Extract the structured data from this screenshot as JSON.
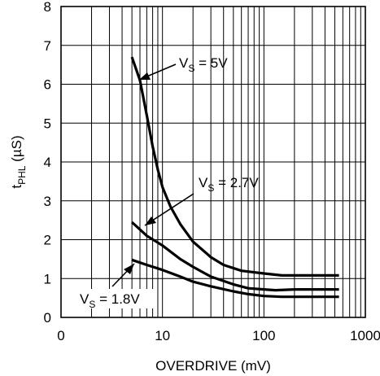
{
  "chart_data": {
    "type": "line",
    "title": "",
    "xlabel": "OVERDRIVE (mV)",
    "ylabel": "tPHL (µS)",
    "ylabel_main": "t",
    "ylabel_sub": "PHL",
    "ylabel_units": " (µS)",
    "x_scale": "log",
    "xlim": [
      1,
      1000
    ],
    "ylim": [
      0,
      8
    ],
    "grid": true,
    "x_tick_labels": [
      "0",
      "10",
      "100",
      "1000"
    ],
    "y_tick_labels": [
      "0",
      "1",
      "2",
      "3",
      "4",
      "5",
      "6",
      "7",
      "8"
    ],
    "series": [
      {
        "name": "VS = 5V",
        "label_main": "V",
        "label_sub": "S",
        "label_rest": " = 5V",
        "points": [
          [
            5,
            6.7
          ],
          [
            6,
            6.1
          ],
          [
            7,
            5.2
          ],
          [
            8,
            4.4
          ],
          [
            9,
            3.8
          ],
          [
            10,
            3.35
          ],
          [
            12,
            2.85
          ],
          [
            15,
            2.4
          ],
          [
            20,
            1.95
          ],
          [
            30,
            1.55
          ],
          [
            40,
            1.35
          ],
          [
            60,
            1.2
          ],
          [
            100,
            1.13
          ],
          [
            150,
            1.08
          ],
          [
            300,
            1.08
          ],
          [
            550,
            1.08
          ]
        ]
      },
      {
        "name": "VS = 2.7V",
        "label_main": "V",
        "label_sub": "S",
        "label_rest": " = 2.7V",
        "points": [
          [
            5,
            2.45
          ],
          [
            7,
            2.1
          ],
          [
            10,
            1.85
          ],
          [
            15,
            1.5
          ],
          [
            20,
            1.3
          ],
          [
            30,
            1.05
          ],
          [
            50,
            0.85
          ],
          [
            70,
            0.75
          ],
          [
            100,
            0.72
          ],
          [
            130,
            0.7
          ],
          [
            200,
            0.72
          ],
          [
            550,
            0.72
          ]
        ]
      },
      {
        "name": "VS = 1.8V",
        "label_main": "V",
        "label_sub": "S",
        "label_rest": " = 1.8V",
        "points": [
          [
            5,
            1.48
          ],
          [
            7,
            1.35
          ],
          [
            10,
            1.22
          ],
          [
            15,
            1.05
          ],
          [
            20,
            0.92
          ],
          [
            30,
            0.8
          ],
          [
            50,
            0.67
          ],
          [
            70,
            0.6
          ],
          [
            100,
            0.55
          ],
          [
            150,
            0.53
          ],
          [
            550,
            0.53
          ]
        ]
      }
    ]
  }
}
